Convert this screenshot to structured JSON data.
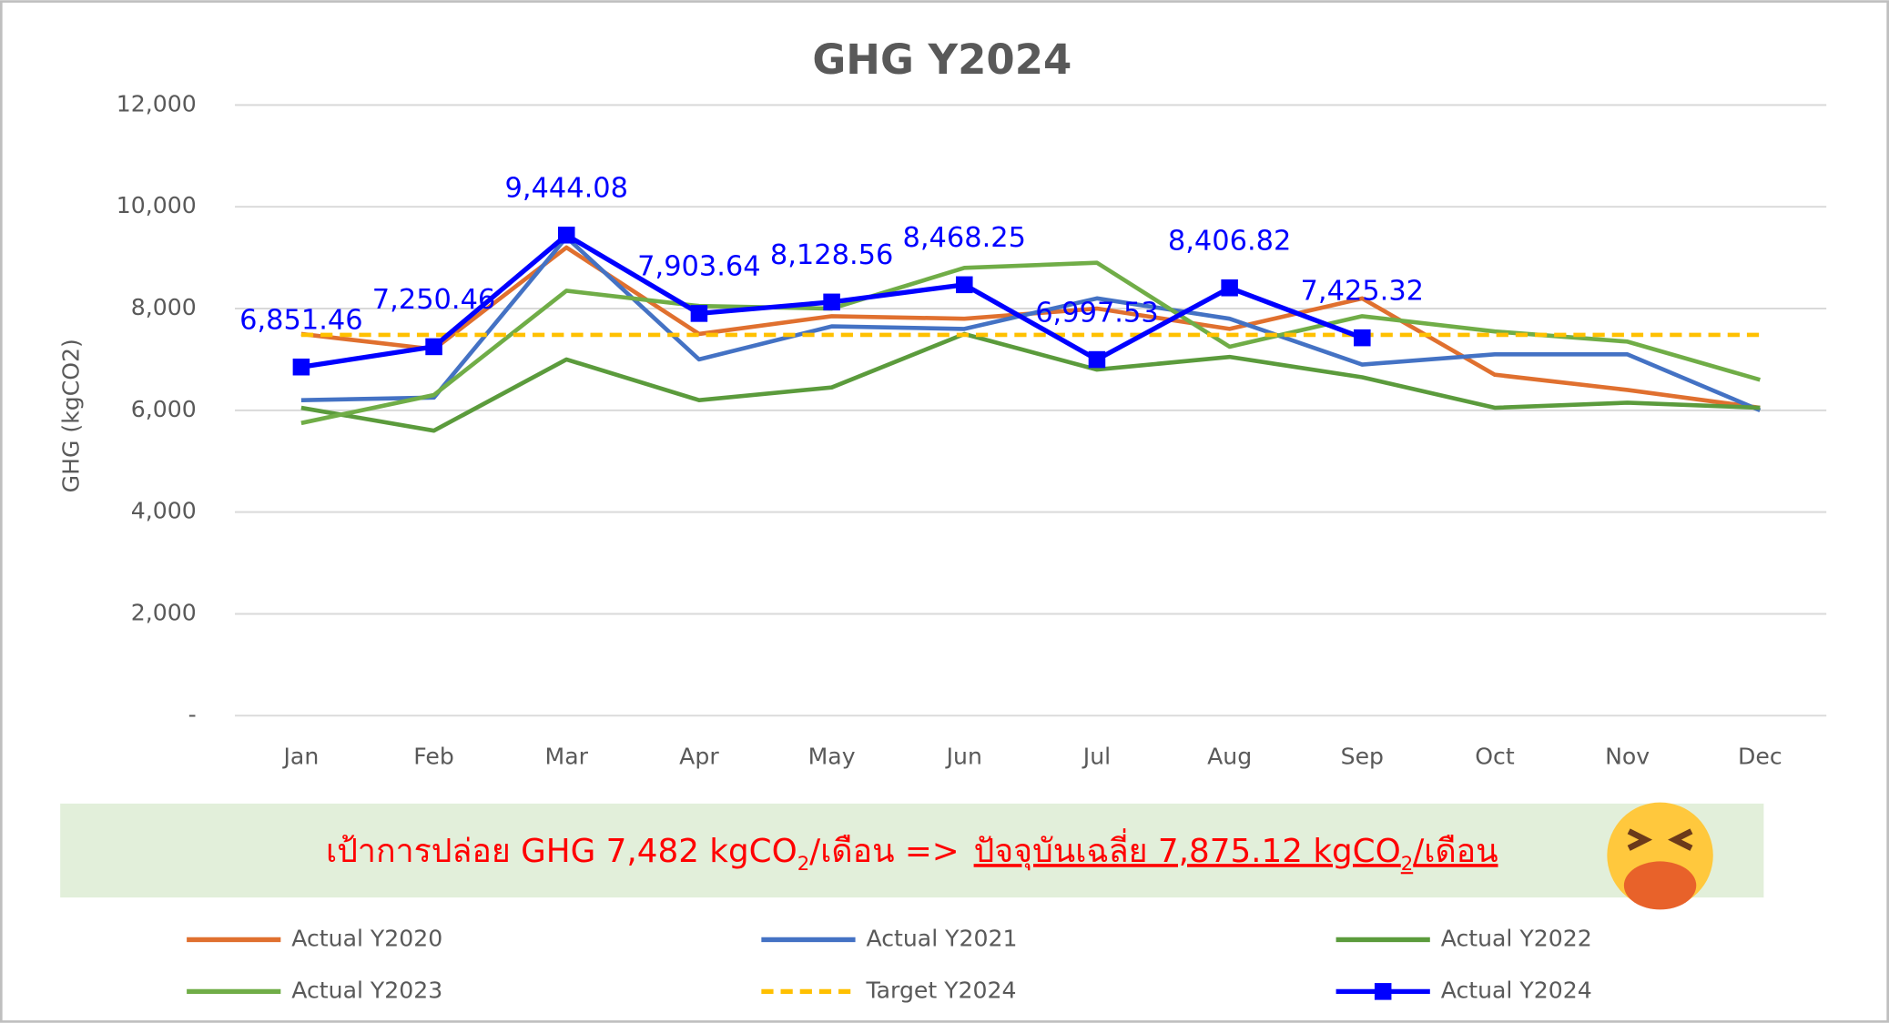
{
  "chart_data": {
    "type": "line",
    "title": "GHG Y2024",
    "y_label": "GHG (kgCO2)",
    "categories": [
      "Jan",
      "Feb",
      "Mar",
      "Apr",
      "May",
      "Jun",
      "Jul",
      "Aug",
      "Sep",
      "Oct",
      "Nov",
      "Dec"
    ],
    "ylim": [
      0,
      12000
    ],
    "yticks": [
      {
        "value": 0,
        "label": "-"
      },
      {
        "value": 2000,
        "label": "2,000"
      },
      {
        "value": 4000,
        "label": "4,000"
      },
      {
        "value": 6000,
        "label": "6,000"
      },
      {
        "value": 8000,
        "label": "8,000"
      },
      {
        "value": 10000,
        "label": "10,000"
      },
      {
        "value": 12000,
        "label": "12,000"
      }
    ],
    "grid": true,
    "series": [
      {
        "name": "Actual Y2020",
        "color": "#e0702f",
        "values": [
          7500,
          7200,
          9200,
          7500,
          7850,
          7800,
          8000,
          7600,
          8200,
          6700,
          6400,
          6050
        ]
      },
      {
        "name": "Actual Y2021",
        "color": "#4472c4",
        "values": [
          6200,
          6250,
          9400,
          7000,
          7650,
          7600,
          8200,
          7800,
          6900,
          7100,
          7100,
          6000
        ]
      },
      {
        "name": "Actual Y2022",
        "color": "#5b9b3c",
        "values": [
          6050,
          5600,
          7000,
          6200,
          6450,
          7500,
          6800,
          7050,
          6650,
          6050,
          6150,
          6050
        ]
      },
      {
        "name": "Actual Y2023",
        "color": "#70ad47",
        "values": [
          5750,
          6300,
          8350,
          8050,
          8000,
          8800,
          8900,
          7250,
          7850,
          7550,
          7350,
          6600
        ]
      },
      {
        "name": "Target Y2024",
        "color": "#ffc000",
        "dashed": true,
        "values": [
          7482,
          7482,
          7482,
          7482,
          7482,
          7482,
          7482,
          7482,
          7482,
          7482,
          7482,
          7482
        ]
      },
      {
        "name": "Actual Y2024",
        "color": "#0000ff",
        "markers": true,
        "values": [
          6851.46,
          7250.46,
          9444.08,
          7903.64,
          8128.56,
          8468.25,
          6997.53,
          8406.82,
          7425.32,
          null,
          null,
          null
        ],
        "value_labels": [
          "6,851.46",
          "7,250.46",
          "9,444.08",
          "7,903.64",
          "8,128.56",
          "8,468.25",
          "6,997.53",
          "8,406.82",
          "7,425.32",
          null,
          null,
          null
        ]
      }
    ],
    "annotation": {
      "parts": [
        "เป้าการปล่อย GHG 7,482 kgCO",
        "2",
        "/เดือน  =>",
        "ปัจจุบันเฉลี่ย 7,875.12 kgCO",
        "2",
        "/เดือน"
      ]
    }
  }
}
